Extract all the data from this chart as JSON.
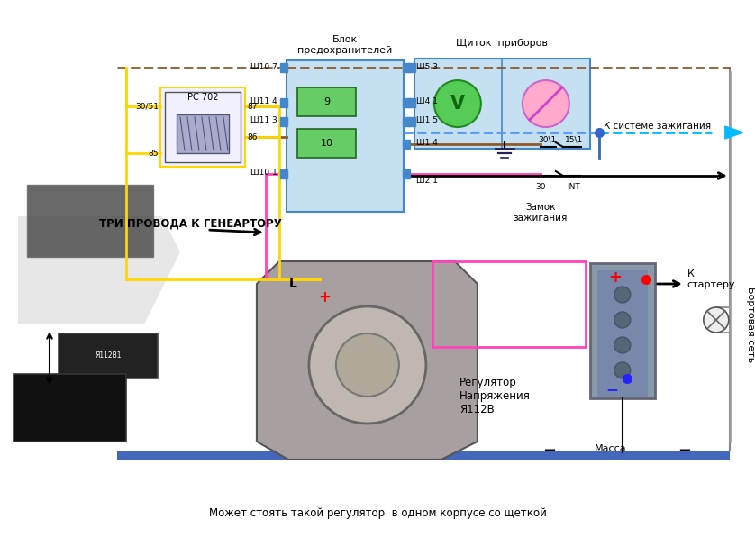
{
  "bg_color": "#ffffff",
  "text_blok": "Блок\nпредохранителей",
  "text_schitok": "Щиток  приборов",
  "text_relay": "РС 702",
  "text_tri_provoda": "ТРИ ПРОВОДА К ГЕНЕАРТОРУ",
  "text_regulator": "Регулятор\nНапряжения\nЯ112В",
  "text_zamok": "Замок\nзажигания",
  "text_sistema": "К системе зажигания",
  "text_starter": "К\nстартеру",
  "text_bort": "Бортовая сеть",
  "text_massa": "Масса",
  "text_bottom": "Может стоять такой регулятор  в одном корпусе со щеткой",
  "brown": "#8B5A2B",
  "yellow": "#FFD700",
  "pink": "#FF44BB",
  "blue_dash": "#5599FF",
  "cyan_arrow": "#00BBFF",
  "black": "#000000",
  "fuse_box_fill": "#C5E0F0",
  "fuse_box_edge": "#4488CC",
  "fuse_fill": "#66CC66",
  "fuse_edge": "#226622",
  "relay_fill": "#F0F0FF",
  "relay_edge": "#FFD700",
  "bat_fill": "#8899AA",
  "bat_edge": "#555555",
  "gray_vert": "#999999",
  "blue_bar": "#4466BB",
  "relay_coil_fill": "#AAAACC",
  "relay_coil_edge": "#555577"
}
